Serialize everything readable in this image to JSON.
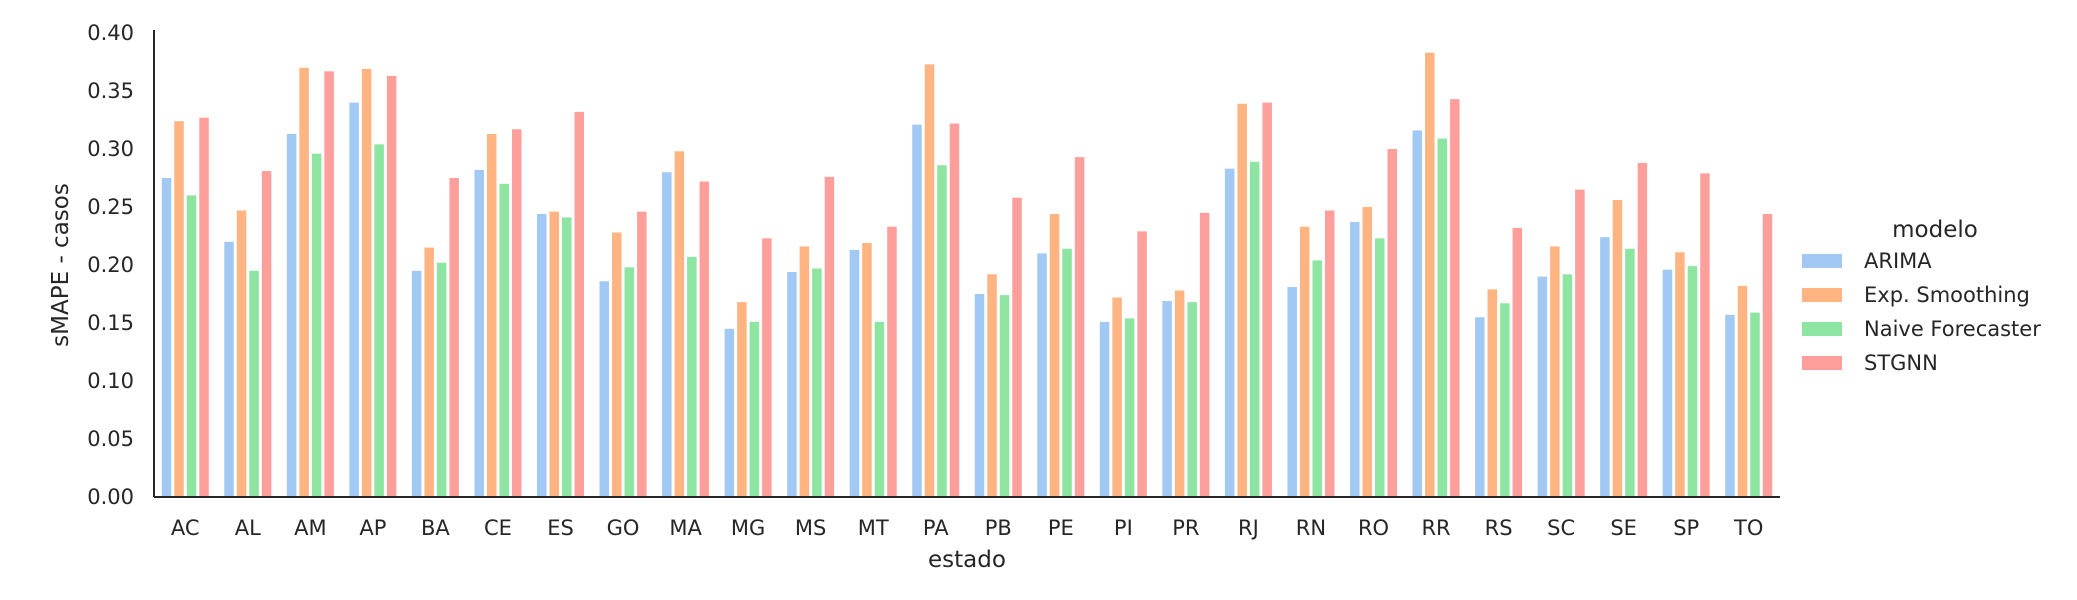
{
  "chart_data": {
    "type": "bar",
    "xlabel": "estado",
    "ylabel": "sMAPE - casos",
    "ylim": [
      0,
      0.4
    ],
    "yticks": [
      "0.00",
      "0.05",
      "0.10",
      "0.15",
      "0.20",
      "0.25",
      "0.30",
      "0.35",
      "0.40"
    ],
    "grid": false,
    "legend_placement": "right",
    "legend_title": "modelo",
    "categories": [
      "AC",
      "AL",
      "AM",
      "AP",
      "BA",
      "CE",
      "ES",
      "GO",
      "MA",
      "MG",
      "MS",
      "MT",
      "PA",
      "PB",
      "PE",
      "PI",
      "PR",
      "RJ",
      "RN",
      "RO",
      "RR",
      "RS",
      "SC",
      "SE",
      "SP",
      "TO"
    ],
    "series": [
      {
        "name": "ARIMA",
        "color": "#a1c9f4",
        "values": [
          0.275,
          0.22,
          0.313,
          0.34,
          0.195,
          0.282,
          0.244,
          0.186,
          0.28,
          0.145,
          0.194,
          0.213,
          0.321,
          0.175,
          0.21,
          0.151,
          0.169,
          0.283,
          0.181,
          0.237,
          0.316,
          0.155,
          0.19,
          0.224,
          0.196,
          0.157
        ]
      },
      {
        "name": "Exp. Smoothing",
        "color": "#ffb482",
        "values": [
          0.324,
          0.247,
          0.37,
          0.369,
          0.215,
          0.313,
          0.246,
          0.228,
          0.298,
          0.168,
          0.216,
          0.219,
          0.373,
          0.192,
          0.244,
          0.172,
          0.178,
          0.339,
          0.233,
          0.25,
          0.383,
          0.179,
          0.216,
          0.256,
          0.211,
          0.182
        ]
      },
      {
        "name": "Naive Forecaster",
        "color": "#8de5a1",
        "values": [
          0.26,
          0.195,
          0.296,
          0.304,
          0.202,
          0.27,
          0.241,
          0.198,
          0.207,
          0.151,
          0.197,
          0.151,
          0.286,
          0.174,
          0.214,
          0.154,
          0.168,
          0.289,
          0.204,
          0.223,
          0.309,
          0.167,
          0.192,
          0.214,
          0.199,
          0.159
        ]
      },
      {
        "name": "STGNN",
        "color": "#ff9f9b",
        "values": [
          0.327,
          0.281,
          0.367,
          0.363,
          0.275,
          0.317,
          0.332,
          0.246,
          0.272,
          0.223,
          0.276,
          0.233,
          0.322,
          0.258,
          0.293,
          0.229,
          0.245,
          0.34,
          0.247,
          0.3,
          0.343,
          0.232,
          0.265,
          0.288,
          0.279,
          0.244
        ]
      }
    ]
  }
}
